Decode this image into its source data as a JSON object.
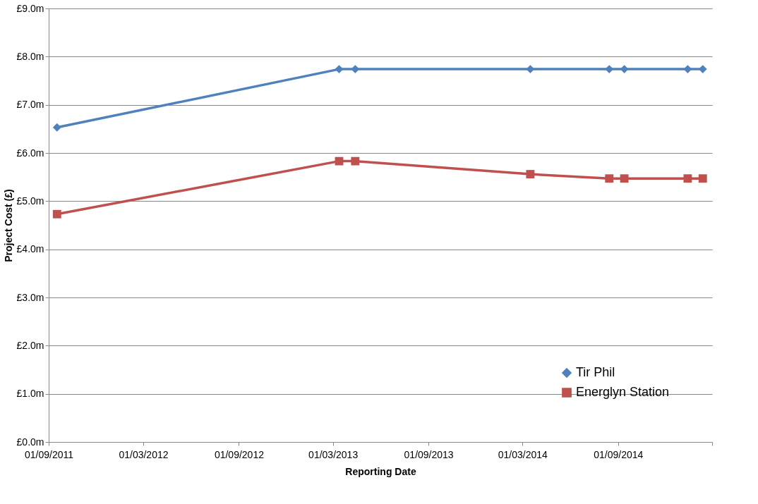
{
  "chart_data": {
    "type": "line",
    "xlabel": "Reporting Date",
    "ylabel": "Project Cost (£)",
    "series": [
      {
        "name": "Tir Phil",
        "color": "#4f81bd",
        "marker": "diamond",
        "x": [
          "2011-09-17",
          "2013-03-13",
          "2013-04-13",
          "2014-03-16",
          "2014-08-15",
          "2014-09-13",
          "2015-01-13",
          "2015-02-11"
        ],
        "values": [
          6.53,
          7.74,
          7.74,
          7.74,
          7.74,
          7.74,
          7.74,
          7.74
        ]
      },
      {
        "name": "Energlyn Station",
        "color": "#c0504d",
        "marker": "square",
        "x": [
          "2011-09-17",
          "2013-03-13",
          "2013-04-13",
          "2014-03-16",
          "2014-08-15",
          "2014-09-13",
          "2015-01-13",
          "2015-02-11"
        ],
        "values": [
          4.73,
          5.83,
          5.83,
          5.56,
          5.47,
          5.47,
          5.47,
          5.47
        ]
      }
    ],
    "xlim": [
      "2011-09-01",
      "2015-03-01"
    ],
    "xticks": [
      {
        "value": "2011-09-01",
        "label": "01/09/2011"
      },
      {
        "value": "2012-03-01",
        "label": "01/03/2012"
      },
      {
        "value": "2012-09-01",
        "label": "01/09/2012"
      },
      {
        "value": "2013-03-01",
        "label": "01/03/2013"
      },
      {
        "value": "2013-09-01",
        "label": "01/09/2013"
      },
      {
        "value": "2014-03-01",
        "label": "01/03/2014"
      },
      {
        "value": "2014-09-01",
        "label": "01/09/2014"
      },
      {
        "value": "2015-03-01",
        "label": null
      }
    ],
    "ylim": [
      0,
      9
    ],
    "yticks": [
      {
        "value": 0,
        "label": "£0.0m"
      },
      {
        "value": 1,
        "label": "£1.0m"
      },
      {
        "value": 2,
        "label": "£2.0m"
      },
      {
        "value": 3,
        "label": "£3.0m"
      },
      {
        "value": 4,
        "label": "£4.0m"
      },
      {
        "value": 5,
        "label": "£5.0m"
      },
      {
        "value": 6,
        "label": "£6.0m"
      },
      {
        "value": 7,
        "label": "£7.0m"
      },
      {
        "value": 8,
        "label": "£8.0m"
      },
      {
        "value": 9,
        "label": "£9.0m"
      }
    ],
    "grid": "y",
    "legend": "bottom right",
    "line_style": "solid"
  }
}
